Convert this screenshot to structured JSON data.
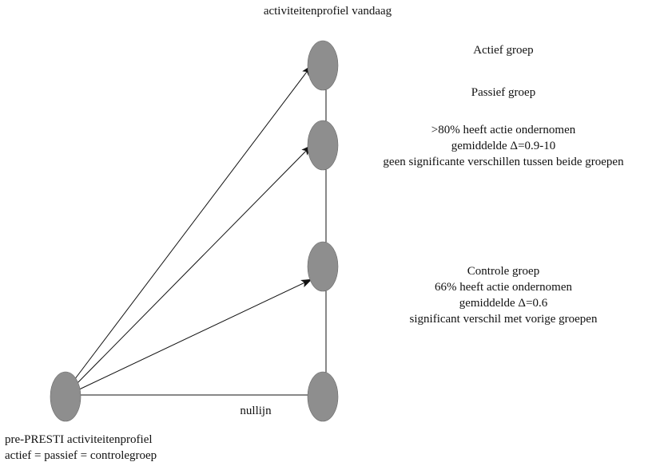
{
  "title": "activiteitenprofiel vandaag",
  "groups": {
    "actief": "Actief groep",
    "passief": "Passief groep",
    "passief_notes": [
      ">80% heeft actie ondernomen",
      "gemiddelde Δ=0.9-10",
      "geen significante verschillen tussen beide groepen"
    ],
    "controle": "Controle groep",
    "controle_notes": [
      "66% heeft actie ondernomen",
      "gemiddelde Δ=0.6",
      "significant verschil met vorige groepen"
    ]
  },
  "baseline_label": "nullijn",
  "origin": {
    "line1": "pre-PRESTI activiteitenprofiel",
    "line2": "actief = passief = controlegroep"
  }
}
